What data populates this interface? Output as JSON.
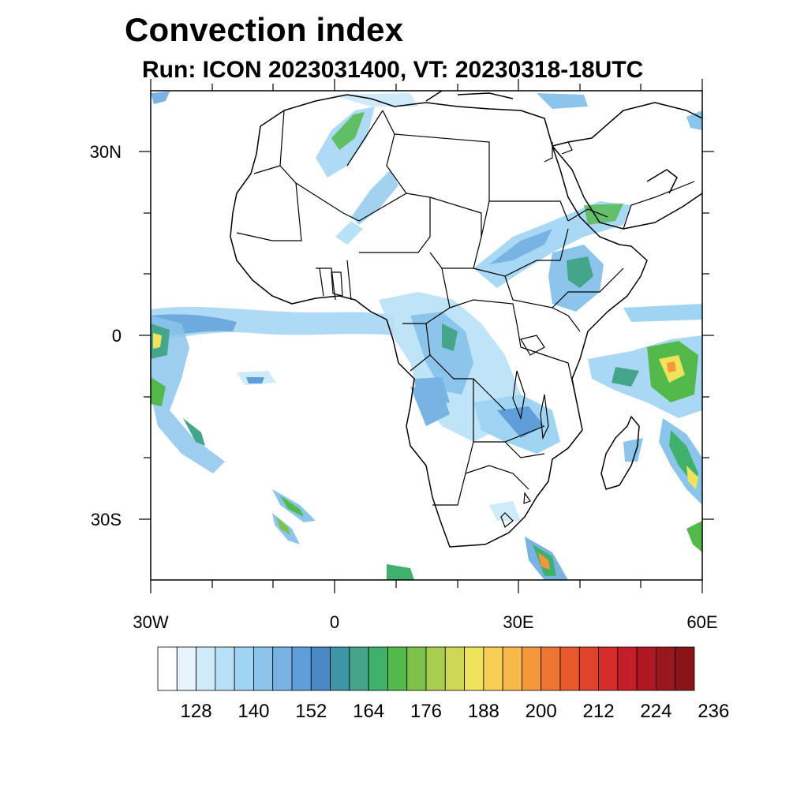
{
  "title": "Convection index",
  "subtitle": "Run: ICON 2023031400,  VT: 20230318-18UTC",
  "axes": {
    "lat_labels": [
      "30N",
      "0",
      "30S"
    ],
    "lon_labels": [
      "30W",
      "0",
      "30E",
      "60E"
    ],
    "lon_range_deg": [
      -30,
      60
    ],
    "lat_range_deg": [
      -40,
      40
    ]
  },
  "colorbar": {
    "tick_labels": [
      "128",
      "140",
      "152",
      "164",
      "176",
      "188",
      "200",
      "212",
      "224",
      "236"
    ],
    "colors": [
      "#ffffff",
      "#e6f4fb",
      "#cfeaf8",
      "#b8e0f6",
      "#a0d4f3",
      "#8cc5ec",
      "#78b3e4",
      "#5f9ed8",
      "#4a89c6",
      "#3f95a8",
      "#44a58a",
      "#3fb16d",
      "#52b94a",
      "#7dc24c",
      "#a8cd50",
      "#cfd854",
      "#eee35a",
      "#f8cf55",
      "#f8b84a",
      "#f5973b",
      "#ef7632",
      "#e85a2c",
      "#e0432a",
      "#d52d2b",
      "#c41e28",
      "#af1722",
      "#9a161d",
      "#8a1518"
    ]
  },
  "map_data": {
    "projection": "cylindrical-equidistant",
    "field": "Convection index",
    "model": "ICON",
    "coastlines": true,
    "borders": true
  }
}
